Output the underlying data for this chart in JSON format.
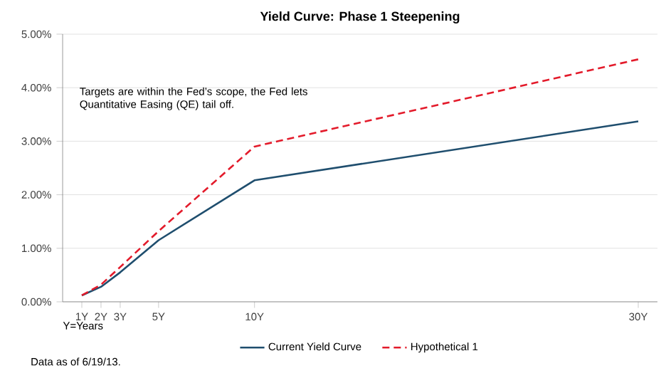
{
  "chart_data": {
    "type": "line",
    "title": "Yield Curve: Phase 1 Steepening",
    "x": [
      1,
      2,
      3,
      5,
      10,
      30
    ],
    "series": [
      {
        "name": "Current Yield Curve",
        "color": "#1f4e6e",
        "line_style": "solid",
        "values": [
          0.12,
          0.28,
          0.55,
          1.15,
          2.27,
          3.37
        ]
      },
      {
        "name": "Hypothetical 1",
        "color": "#e31b2b",
        "line_style": "dashed",
        "values": [
          0.12,
          0.32,
          0.65,
          1.32,
          2.9,
          4.53
        ]
      }
    ],
    "xlim": [
      0,
      31
    ],
    "xticks": [
      {
        "value": 1,
        "label": "1Y"
      },
      {
        "value": 2,
        "label": "2Y"
      },
      {
        "value": 3,
        "label": "3Y"
      },
      {
        "value": 5,
        "label": "5Y"
      },
      {
        "value": 10,
        "label": "10Y"
      },
      {
        "value": 30,
        "label": "30Y"
      }
    ],
    "ylim": [
      0,
      5
    ],
    "yticks": [
      {
        "value": 0,
        "label": "0.00%"
      },
      {
        "value": 1,
        "label": "1.00%"
      },
      {
        "value": 2,
        "label": "2.00%"
      },
      {
        "value": 3,
        "label": "3.00%"
      },
      {
        "value": 4,
        "label": "4.00%"
      },
      {
        "value": 5,
        "label": "5.00%"
      }
    ],
    "grid": "y",
    "legend": "bottom",
    "annotations": [
      "Targets are within the Fed’s scope, the Fed lets Quantitative Easing (QE) tail off.",
      "Y=Years",
      "Data as of 6/19/13."
    ]
  }
}
